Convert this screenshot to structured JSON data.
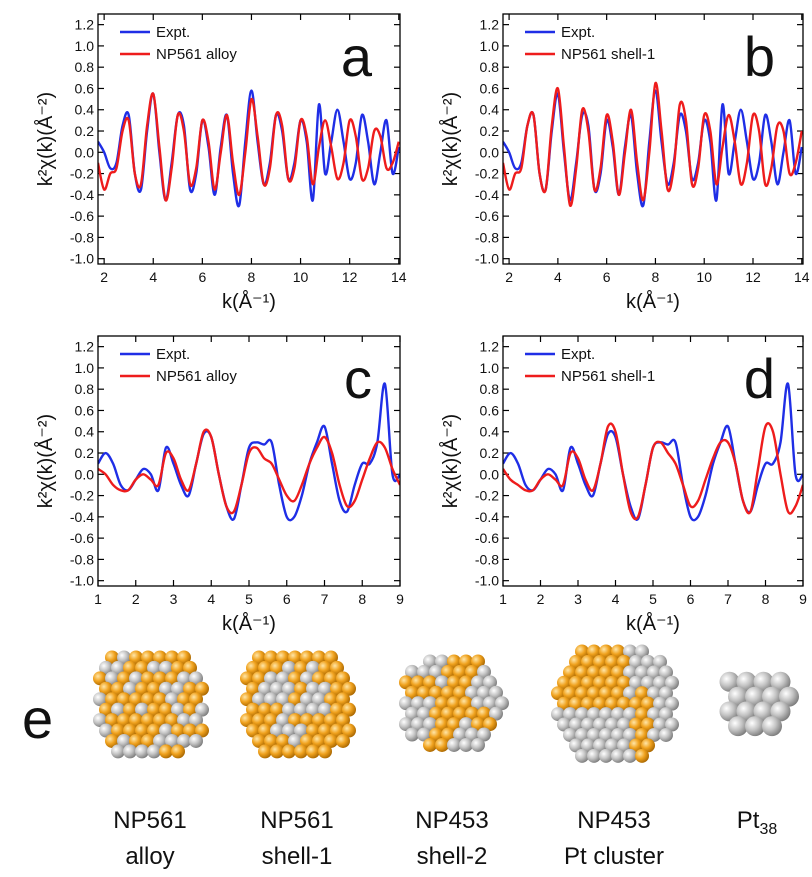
{
  "chart_data": [
    {
      "type": "line",
      "annotation": "a",
      "x_label": "k(Å⁻¹)",
      "y_label": "k²χ(k)(Å⁻²)",
      "legend": "upper left",
      "x": [
        1.75,
        2.0,
        2.25,
        2.5,
        2.75,
        3.0,
        3.25,
        3.5,
        3.75,
        4.0,
        4.25,
        4.5,
        4.75,
        5.0,
        5.25,
        5.5,
        5.75,
        6.0,
        6.25,
        6.5,
        6.75,
        7.0,
        7.25,
        7.5,
        7.75,
        8.0,
        8.25,
        8.5,
        8.75,
        9.0,
        9.25,
        9.5,
        9.75,
        10.0,
        10.25,
        10.5,
        10.75,
        11.0,
        11.25,
        11.5,
        11.75,
        12.0,
        12.25,
        12.5,
        12.75,
        13.0,
        13.25,
        13.5,
        13.75,
        14.0
      ],
      "series": [
        {
          "name": "Expt.",
          "color": "#1f2ee6",
          "values": [
            0.1,
            0.0,
            -0.15,
            -0.1,
            0.25,
            0.35,
            -0.2,
            -0.35,
            0.2,
            0.55,
            0.0,
            -0.45,
            -0.1,
            0.35,
            0.25,
            -0.35,
            -0.2,
            0.3,
            0.05,
            -0.4,
            0.05,
            0.35,
            -0.2,
            -0.5,
            0.1,
            0.58,
            0.1,
            -0.3,
            -0.1,
            0.35,
            0.2,
            -0.25,
            -0.1,
            0.3,
            0.1,
            -0.45,
            0.45,
            -0.2,
            0.1,
            0.4,
            0.1,
            -0.25,
            -0.1,
            0.35,
            0.1,
            -0.3,
            0.0,
            0.3,
            -0.2,
            0.05
          ]
        },
        {
          "name": "NP561 alloy",
          "color": "#ee1c1c",
          "values": [
            -0.1,
            -0.35,
            -0.2,
            -0.15,
            0.2,
            0.3,
            -0.2,
            -0.3,
            0.25,
            0.55,
            0.05,
            -0.45,
            -0.15,
            0.35,
            0.2,
            -0.3,
            -0.15,
            0.3,
            0.1,
            -0.35,
            0.0,
            0.35,
            -0.1,
            -0.4,
            0.0,
            0.5,
            0.15,
            -0.3,
            -0.15,
            0.35,
            0.25,
            -0.25,
            -0.15,
            0.3,
            0.15,
            -0.3,
            0.05,
            0.3,
            0.05,
            -0.25,
            -0.1,
            0.3,
            0.15,
            -0.25,
            -0.15,
            0.2,
            0.15,
            -0.15,
            -0.1,
            0.1
          ]
        }
      ],
      "xlim": [
        1.75,
        14.05
      ],
      "ylim": [
        -1.05,
        1.3
      ],
      "xticks": [
        2,
        4,
        6,
        8,
        10,
        12,
        14
      ],
      "yticks": [
        {
          "value": -1,
          "label": "-1.0"
        },
        -0.8,
        -0.6,
        -0.4,
        -0.2,
        {
          "value": 0,
          "label": "0.0"
        },
        0.2,
        0.4,
        0.6,
        0.8,
        {
          "value": 1,
          "label": "1.0"
        },
        1.2
      ]
    },
    {
      "type": "line",
      "annotation": "b",
      "x_label": "k(Å⁻¹)",
      "y_label": "k²χ(k)(Å⁻²)",
      "legend": "upper left",
      "x": [
        1.75,
        2.0,
        2.25,
        2.5,
        2.75,
        3.0,
        3.25,
        3.5,
        3.75,
        4.0,
        4.25,
        4.5,
        4.75,
        5.0,
        5.25,
        5.5,
        5.75,
        6.0,
        6.25,
        6.5,
        6.75,
        7.0,
        7.25,
        7.5,
        7.75,
        8.0,
        8.25,
        8.5,
        8.75,
        9.0,
        9.25,
        9.5,
        9.75,
        10.0,
        10.25,
        10.5,
        10.75,
        11.0,
        11.25,
        11.5,
        11.75,
        12.0,
        12.25,
        12.5,
        12.75,
        13.0,
        13.25,
        13.5,
        13.75,
        14.0
      ],
      "series": [
        {
          "name": "Expt.",
          "color": "#1f2ee6",
          "values": [
            0.1,
            0.0,
            -0.15,
            -0.1,
            0.25,
            0.35,
            -0.2,
            -0.35,
            0.2,
            0.55,
            0.0,
            -0.45,
            -0.1,
            0.35,
            0.25,
            -0.35,
            -0.2,
            0.3,
            0.05,
            -0.4,
            0.05,
            0.35,
            -0.2,
            -0.5,
            0.1,
            0.58,
            0.1,
            -0.3,
            -0.1,
            0.35,
            0.2,
            -0.25,
            -0.1,
            0.3,
            0.1,
            -0.45,
            0.45,
            -0.2,
            0.1,
            0.4,
            0.1,
            -0.25,
            -0.1,
            0.35,
            0.1,
            -0.3,
            0.0,
            0.3,
            -0.2,
            0.05
          ]
        },
        {
          "name": "NP561 shell-1",
          "color": "#ee1c1c",
          "values": [
            -0.1,
            -0.35,
            -0.2,
            -0.15,
            0.25,
            0.35,
            -0.2,
            -0.35,
            0.25,
            0.6,
            0.05,
            -0.5,
            -0.15,
            0.4,
            0.2,
            -0.35,
            -0.15,
            0.35,
            0.1,
            -0.4,
            0.0,
            0.4,
            -0.1,
            -0.45,
            0.0,
            0.65,
            0.2,
            -0.35,
            -0.15,
            0.45,
            0.3,
            -0.3,
            -0.15,
            0.35,
            0.2,
            -0.3,
            0.05,
            0.35,
            0.1,
            -0.3,
            -0.1,
            0.35,
            0.2,
            -0.3,
            -0.15,
            0.25,
            0.2,
            -0.2,
            -0.1,
            0.2
          ]
        }
      ],
      "xlim": [
        1.75,
        14.05
      ],
      "ylim": [
        -1.05,
        1.3
      ],
      "xticks": [
        2,
        4,
        6,
        8,
        10,
        12,
        14
      ],
      "yticks": [
        {
          "value": -1,
          "label": "-1.0"
        },
        -0.8,
        -0.6,
        -0.4,
        -0.2,
        {
          "value": 0,
          "label": "0.0"
        },
        0.2,
        0.4,
        0.6,
        0.8,
        {
          "value": 1,
          "label": "1.0"
        },
        1.2
      ]
    },
    {
      "type": "line",
      "annotation": "c",
      "x_label": "k(Å⁻¹)",
      "y_label": "k²χ(k)(Å⁻²)",
      "legend": "upper left",
      "x": [
        1.0,
        1.2,
        1.4,
        1.6,
        1.8,
        2.0,
        2.2,
        2.4,
        2.6,
        2.8,
        3.0,
        3.2,
        3.4,
        3.6,
        3.8,
        4.0,
        4.2,
        4.4,
        4.6,
        4.8,
        5.0,
        5.2,
        5.4,
        5.6,
        5.8,
        6.0,
        6.2,
        6.4,
        6.6,
        6.8,
        7.0,
        7.2,
        7.4,
        7.6,
        7.8,
        8.0,
        8.2,
        8.4,
        8.6,
        8.8,
        9.0
      ],
      "series": [
        {
          "name": "Expt.",
          "color": "#1f2ee6",
          "values": [
            0.1,
            0.2,
            0.1,
            -0.1,
            -0.15,
            -0.05,
            0.05,
            0.0,
            -0.15,
            0.25,
            0.1,
            -0.1,
            -0.2,
            0.1,
            0.38,
            0.35,
            0.0,
            -0.3,
            -0.42,
            -0.1,
            0.25,
            0.3,
            0.28,
            0.3,
            -0.1,
            -0.4,
            -0.4,
            -0.2,
            0.1,
            0.3,
            0.45,
            0.1,
            -0.25,
            -0.35,
            -0.1,
            0.1,
            0.1,
            0.3,
            0.85,
            0.0,
            0.0
          ]
        },
        {
          "name": "NP561 alloy",
          "color": "#ee1c1c",
          "values": [
            0.05,
            0.0,
            -0.1,
            -0.15,
            -0.15,
            -0.05,
            0.0,
            -0.05,
            -0.1,
            0.2,
            0.15,
            -0.05,
            -0.15,
            0.1,
            0.4,
            0.35,
            0.0,
            -0.3,
            -0.35,
            -0.1,
            0.2,
            0.25,
            0.15,
            0.1,
            -0.05,
            -0.2,
            -0.25,
            -0.1,
            0.1,
            0.25,
            0.35,
            0.2,
            -0.1,
            -0.3,
            -0.25,
            -0.05,
            0.15,
            0.3,
            0.25,
            0.05,
            -0.1
          ]
        }
      ],
      "xlim": [
        1,
        9
      ],
      "ylim": [
        -1.05,
        1.3
      ],
      "xticks": [
        1,
        2,
        3,
        4,
        5,
        6,
        7,
        8,
        9
      ],
      "yticks": [
        {
          "value": -1,
          "label": "-1.0"
        },
        -0.8,
        -0.6,
        -0.4,
        -0.2,
        {
          "value": 0,
          "label": "0.0"
        },
        0.2,
        0.4,
        0.6,
        0.8,
        {
          "value": 1,
          "label": "1.0"
        },
        1.2
      ]
    },
    {
      "type": "line",
      "annotation": "d",
      "x_label": "k(Å⁻¹)",
      "y_label": "k²χ(k)(Å⁻²)",
      "legend": "upper left",
      "x": [
        1.0,
        1.2,
        1.4,
        1.6,
        1.8,
        2.0,
        2.2,
        2.4,
        2.6,
        2.8,
        3.0,
        3.2,
        3.4,
        3.6,
        3.8,
        4.0,
        4.2,
        4.4,
        4.6,
        4.8,
        5.0,
        5.2,
        5.4,
        5.6,
        5.8,
        6.0,
        6.2,
        6.4,
        6.6,
        6.8,
        7.0,
        7.2,
        7.4,
        7.6,
        7.8,
        8.0,
        8.2,
        8.4,
        8.6,
        8.8,
        9.0
      ],
      "series": [
        {
          "name": "Expt.",
          "color": "#1f2ee6",
          "values": [
            0.1,
            0.2,
            0.1,
            -0.1,
            -0.15,
            -0.05,
            0.05,
            0.0,
            -0.15,
            0.25,
            0.1,
            -0.1,
            -0.2,
            0.1,
            0.38,
            0.35,
            0.0,
            -0.3,
            -0.42,
            -0.1,
            0.25,
            0.3,
            0.28,
            0.3,
            -0.1,
            -0.4,
            -0.4,
            -0.2,
            0.1,
            0.3,
            0.45,
            0.1,
            -0.25,
            -0.35,
            -0.1,
            0.1,
            0.1,
            0.3,
            0.85,
            0.0,
            0.0
          ]
        },
        {
          "name": "NP561 shell-1",
          "color": "#ee1c1c",
          "values": [
            0.05,
            -0.05,
            -0.1,
            -0.15,
            -0.15,
            -0.05,
            0.0,
            -0.05,
            -0.1,
            0.2,
            0.15,
            -0.05,
            -0.15,
            0.1,
            0.45,
            0.4,
            0.0,
            -0.35,
            -0.4,
            -0.1,
            0.25,
            0.3,
            0.2,
            0.1,
            -0.1,
            -0.3,
            -0.25,
            -0.05,
            0.15,
            0.3,
            0.3,
            0.1,
            -0.25,
            -0.35,
            0.05,
            0.45,
            0.4,
            0.0,
            -0.35,
            -0.3,
            -0.1
          ]
        }
      ],
      "xlim": [
        1,
        9
      ],
      "ylim": [
        -1.05,
        1.3
      ],
      "xticks": [
        1,
        2,
        3,
        4,
        5,
        6,
        7,
        8,
        9
      ],
      "yticks": [
        {
          "value": -1,
          "label": "-1.0"
        },
        -0.8,
        -0.6,
        -0.4,
        -0.2,
        {
          "value": 0,
          "label": "0.0"
        },
        0.2,
        0.4,
        0.6,
        0.8,
        {
          "value": 1,
          "label": "1.0"
        },
        1.2
      ]
    }
  ],
  "panel_e": {
    "label": "e",
    "models": [
      {
        "name": "NP561",
        "desc": "alloy"
      },
      {
        "name": "NP561",
        "desc": "shell-1"
      },
      {
        "name": "NP453",
        "desc": "shell-2"
      },
      {
        "name": "NP453",
        "desc": "Pt cluster"
      },
      {
        "name": "Pt",
        "sub": "38"
      }
    ]
  }
}
